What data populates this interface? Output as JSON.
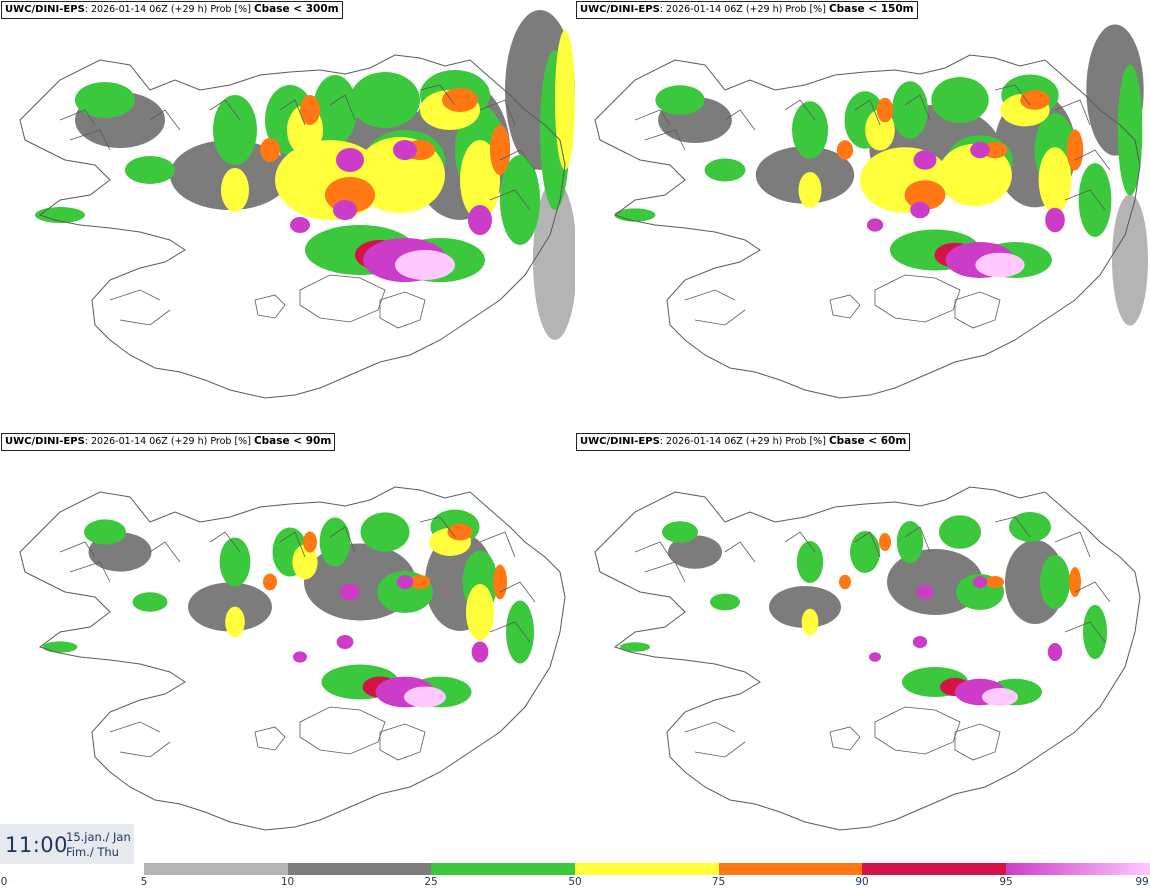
{
  "panels": [
    {
      "model": "UWC/DINI-EPS",
      "info": ": 2026-01-14 06Z (+29 h) Prob [%] ",
      "threshold": "Cbase < 300m"
    },
    {
      "model": "UWC/DINI-EPS",
      "info": ": 2026-01-14 06Z (+29 h) Prob [%] ",
      "threshold": "Cbase < 150m"
    },
    {
      "model": "UWC/DINI-EPS",
      "info": ": 2026-01-14 06Z (+29 h) Prob [%] ",
      "threshold": "Cbase < 90m"
    },
    {
      "model": "UWC/DINI-EPS",
      "info": ": 2026-01-14 06Z (+29 h) Prob [%] ",
      "threshold": "Cbase < 60m"
    }
  ],
  "valid_time": {
    "hour": "11:00",
    "date_line1": "15.jan./ Jan",
    "date_line2": "Fim./ Thu"
  },
  "colorbar": {
    "bounds": [
      0,
      5,
      10,
      25,
      50,
      75,
      90,
      95,
      99
    ],
    "tick_labels": [
      "0",
      "5",
      "10",
      "25",
      "50",
      "75",
      "90",
      "95",
      "99"
    ],
    "colors": [
      "#ffffff",
      "#b4b4b4",
      "#7c7c7c",
      "#3cc83c",
      "#ffff3c",
      "#ff7814",
      "#d21446",
      "#cd3cc8",
      "#ffc8ff"
    ],
    "gradient_last": true
  },
  "palette": {
    "outline": "#5a5a5a",
    "gray_light": "#b4b4b4",
    "gray_dark": "#7c7c7c",
    "green": "#3cc83c",
    "yellow": "#ffff3c",
    "orange": "#ff7814",
    "red": "#d21446",
    "magenta": "#cd3cc8",
    "pink": "#ffc8ff"
  }
}
